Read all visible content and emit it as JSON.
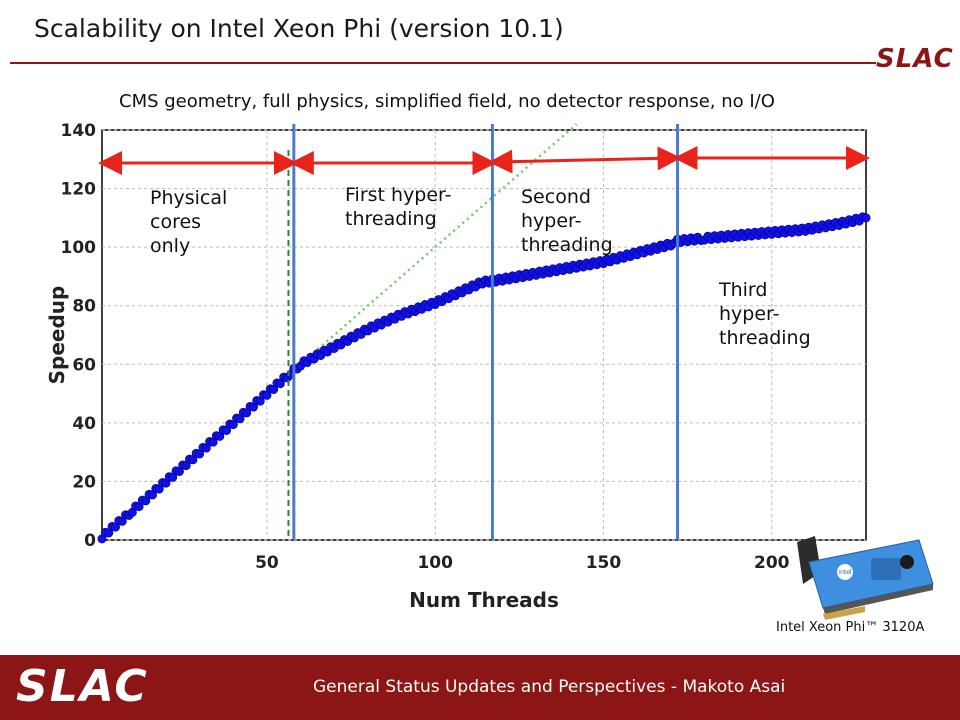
{
  "slide": {
    "title": "Scalability on Intel Xeon Phi (version 10.1)",
    "subtitle": "CMS geometry, full physics, simplified field, no detector response, no I/O",
    "logo_text": "SLAC",
    "footer_logo_text": "SLAC",
    "footer_text": "General Status Updates and Perspectives - Makoto Asai",
    "card_caption": "Intel Xeon Phi™ 3120A",
    "card_logo_text": "intel"
  },
  "colors": {
    "brand": "#8c1515",
    "series": "#1010ee",
    "ideal": "#2a9a2a",
    "divider": "#4a7ad0",
    "arrow": "#e8231a",
    "dashed_marker": "#2a8a2a"
  },
  "chart_data": {
    "type": "scatter",
    "xlabel": "Num Threads",
    "ylabel": "Speedup",
    "xlim": [
      1,
      228
    ],
    "ylim": [
      0,
      140
    ],
    "xticks": [
      50,
      100,
      150,
      200
    ],
    "yticks": [
      0,
      20,
      40,
      60,
      80,
      100,
      120,
      140
    ],
    "grid": true,
    "series": [
      {
        "style": "markers",
        "x": [
          1,
          10,
          20,
          30,
          40,
          50,
          57,
          60,
          70,
          80,
          90,
          100,
          110,
          114,
          120,
          130,
          140,
          150,
          160,
          170,
          171,
          180,
          190,
          200,
          210,
          220,
          228
        ],
        "y": [
          1,
          10,
          20,
          30,
          40,
          50,
          57,
          60,
          66,
          72,
          77,
          81,
          86,
          88,
          89,
          91,
          93,
          95,
          98,
          101,
          102,
          103,
          104,
          105,
          106,
          108,
          110
        ]
      },
      {
        "style": "line",
        "x": [
          1,
          57
        ],
        "y": [
          1,
          57
        ]
      },
      {
        "style": "dotted",
        "x": [
          57,
          142
        ],
        "y": [
          57,
          142
        ]
      }
    ],
    "vertical_markers": [
      {
        "x": 57,
        "style": "dashed"
      },
      {
        "x": 58
      },
      {
        "x": 117
      },
      {
        "x": 172
      }
    ],
    "annotations": [
      {
        "text": "Physical cores only",
        "lines": [
          "Physical",
          "cores",
          "only"
        ],
        "arrow_from": 1,
        "arrow_to": 58
      },
      {
        "text": "First hyper-threading",
        "lines": [
          "First hyper-",
          "threading"
        ],
        "arrow_from": 58,
        "arrow_to": 117
      },
      {
        "text": "Second hyper-threading",
        "lines": [
          "Second",
          "hyper-",
          "threading"
        ],
        "arrow_from": 117,
        "arrow_to": 172
      },
      {
        "text": "Third hyper-threading",
        "lines": [
          "Third",
          "hyper-",
          "threading"
        ],
        "arrow_from": 172,
        "arrow_to": 228
      }
    ]
  }
}
